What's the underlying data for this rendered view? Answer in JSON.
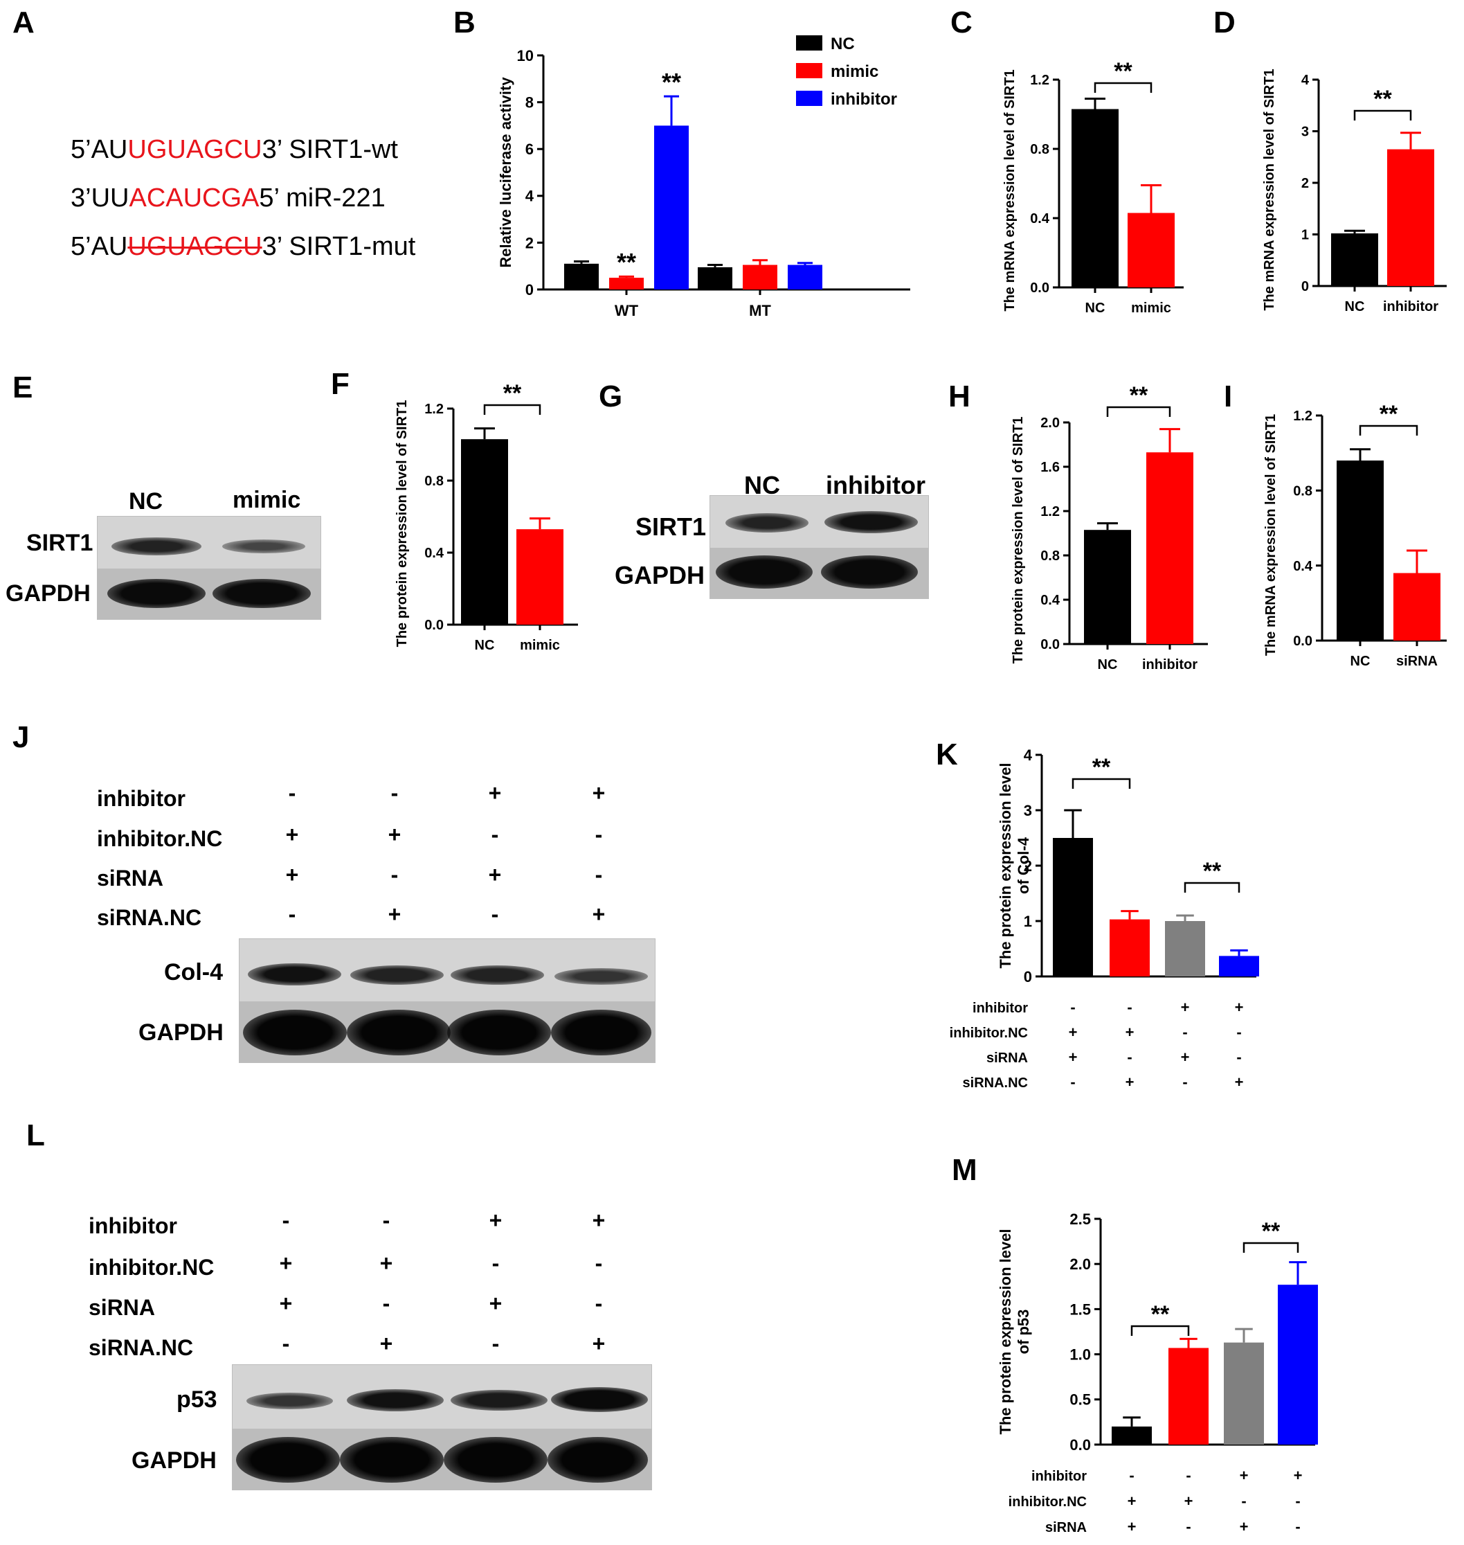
{
  "panels": {
    "A": {
      "label": "A",
      "rows": [
        {
          "prefix": "5’AU",
          "seq": "UGUAGCU",
          "suffix": "3’ SIRT1-wt",
          "style": "red"
        },
        {
          "prefix": "3’UU",
          "seq": "ACAUCGA",
          "suffix": "5’ miR-221",
          "style": "red"
        },
        {
          "prefix": "5’AU",
          "seq": "UGUAGCU",
          "suffix": "3’ SIRT1-mut",
          "style": "strike"
        }
      ]
    },
    "E": {
      "label": "E",
      "lanes": [
        "NC",
        "mimic"
      ],
      "rows": [
        "SIRT1",
        "GAPDH"
      ]
    },
    "G": {
      "label": "G",
      "lanes": [
        "NC",
        "inhibitor"
      ],
      "rows": [
        "SIRT1",
        "GAPDH"
      ]
    },
    "J": {
      "label": "J",
      "conditions": [
        "inhibitor",
        "inhibitor.NC",
        "siRNA",
        "siRNA.NC"
      ],
      "signs": [
        [
          "-",
          "-",
          "+",
          "+"
        ],
        [
          "+",
          "+",
          "-",
          "-"
        ],
        [
          "+",
          "-",
          "+",
          "-"
        ],
        [
          "-",
          "+",
          "-",
          "+"
        ]
      ],
      "rows": [
        "Col-4",
        "GAPDH"
      ]
    },
    "L": {
      "label": "L",
      "conditions": [
        "inhibitor",
        "inhibitor.NC",
        "siRNA",
        "siRNA.NC"
      ],
      "signs": [
        [
          "-",
          "-",
          "+",
          "+"
        ],
        [
          "+",
          "+",
          "-",
          "-"
        ],
        [
          "+",
          "-",
          "+",
          "-"
        ],
        [
          "-",
          "+",
          "-",
          "+"
        ]
      ],
      "rows": [
        "p53",
        "GAPDH"
      ]
    }
  },
  "colors": {
    "black": "#000000",
    "red": "#ff0000",
    "blue": "#0000ff",
    "gray": "#808080"
  },
  "chart_data": [
    {
      "panel": "B",
      "type": "bar",
      "ylabel": "Relative luciferase activity",
      "categories": [
        "WT",
        "MT"
      ],
      "ylim": [
        0,
        10
      ],
      "yticks": [
        0,
        2,
        4,
        6,
        8,
        10
      ],
      "series": [
        {
          "name": "NC",
          "color": "#000000",
          "values": [
            1.1,
            0.95
          ],
          "errors": [
            0.1,
            0.1
          ]
        },
        {
          "name": "mimic",
          "color": "#ff0000",
          "values": [
            0.5,
            1.05
          ],
          "errors": [
            0.05,
            0.2
          ]
        },
        {
          "name": "inhibitor",
          "color": "#0000ff",
          "values": [
            7.0,
            1.05
          ],
          "errors": [
            1.25,
            0.08
          ]
        }
      ],
      "annotations": [
        "**",
        "**"
      ],
      "legend": "top-right"
    },
    {
      "panel": "C",
      "type": "bar",
      "ylabel": "The mRNA expression level of SIRT1",
      "categories": [
        "NC",
        "mimic"
      ],
      "values": [
        1.03,
        0.43
      ],
      "errors": [
        0.06,
        0.16
      ],
      "colors": [
        "#000000",
        "#ff0000"
      ],
      "ylim": [
        0,
        1.2
      ],
      "yticks": [
        "0.0",
        "0.4",
        "0.8",
        "1.2"
      ],
      "significance": "**"
    },
    {
      "panel": "D",
      "type": "bar",
      "ylabel": "The mRNA expression level of SIRT1",
      "categories": [
        "NC",
        "inhibitor"
      ],
      "values": [
        1.02,
        2.65
      ],
      "errors": [
        0.05,
        0.32
      ],
      "colors": [
        "#000000",
        "#ff0000"
      ],
      "ylim": [
        0,
        4
      ],
      "yticks": [
        "0",
        "1",
        "2",
        "3",
        "4"
      ],
      "significance": "**"
    },
    {
      "panel": "F",
      "type": "bar",
      "ylabel": "The protein expression level of SIRT1",
      "categories": [
        "NC",
        "mimic"
      ],
      "values": [
        1.03,
        0.53
      ],
      "errors": [
        0.06,
        0.06
      ],
      "colors": [
        "#000000",
        "#ff0000"
      ],
      "ylim": [
        0,
        1.2
      ],
      "yticks": [
        "0.0",
        "0.4",
        "0.8",
        "1.2"
      ],
      "significance": "**"
    },
    {
      "panel": "H",
      "type": "bar",
      "ylabel": "The protein expression level of SIRT1",
      "categories": [
        "NC",
        "inhibitor"
      ],
      "values": [
        1.03,
        1.73
      ],
      "errors": [
        0.06,
        0.21
      ],
      "colors": [
        "#000000",
        "#ff0000"
      ],
      "ylim": [
        0,
        2.0
      ],
      "yticks": [
        "0.0",
        "0.4",
        "0.8",
        "1.2",
        "1.6",
        "2.0"
      ],
      "significance": "**"
    },
    {
      "panel": "I",
      "type": "bar",
      "ylabel": "The mRNA expression level of SIRT1",
      "categories": [
        "NC",
        "siRNA"
      ],
      "values": [
        0.96,
        0.36
      ],
      "errors": [
        0.06,
        0.12
      ],
      "colors": [
        "#000000",
        "#ff0000"
      ],
      "ylim": [
        0,
        1.2
      ],
      "yticks": [
        "0.0",
        "0.4",
        "0.8",
        "1.2"
      ],
      "significance": "**"
    },
    {
      "panel": "K",
      "type": "bar",
      "ylabel": [
        "The protein expression level",
        "of Col-4"
      ],
      "values": [
        2.5,
        1.03,
        1.0,
        0.37
      ],
      "errors": [
        0.5,
        0.15,
        0.1,
        0.1
      ],
      "colors": [
        "#000000",
        "#ff0000",
        "#808080",
        "#0000ff"
      ],
      "ylim": [
        0,
        4
      ],
      "yticks": [
        "0",
        "1",
        "2",
        "3",
        "4"
      ],
      "significance": [
        "**",
        "**"
      ],
      "conditions": [
        "inhibitor",
        "inhibitor.NC",
        "siRNA",
        "siRNA.NC"
      ],
      "signs": [
        [
          "-",
          "-",
          "+",
          "+"
        ],
        [
          "+",
          "+",
          "-",
          "-"
        ],
        [
          "+",
          "-",
          "+",
          "-"
        ],
        [
          "-",
          "+",
          "-",
          "+"
        ]
      ]
    },
    {
      "panel": "M",
      "type": "bar",
      "ylabel": [
        "The protein expression level",
        "of p53"
      ],
      "values": [
        0.2,
        1.07,
        1.13,
        1.77
      ],
      "errors": [
        0.1,
        0.1,
        0.15,
        0.25
      ],
      "colors": [
        "#000000",
        "#ff0000",
        "#808080",
        "#0000ff"
      ],
      "ylim": [
        0,
        2.5
      ],
      "yticks": [
        "0.0",
        "0.5",
        "1.0",
        "1.5",
        "2.0",
        "2.5"
      ],
      "significance": [
        "**",
        "**"
      ],
      "conditions": [
        "inhibitor",
        "inhibitor.NC",
        "siRNA"
      ],
      "signs": [
        [
          "-",
          "-",
          "+",
          "+"
        ],
        [
          "+",
          "+",
          "-",
          "-"
        ],
        [
          "+",
          "-",
          "+",
          "-"
        ]
      ]
    }
  ]
}
